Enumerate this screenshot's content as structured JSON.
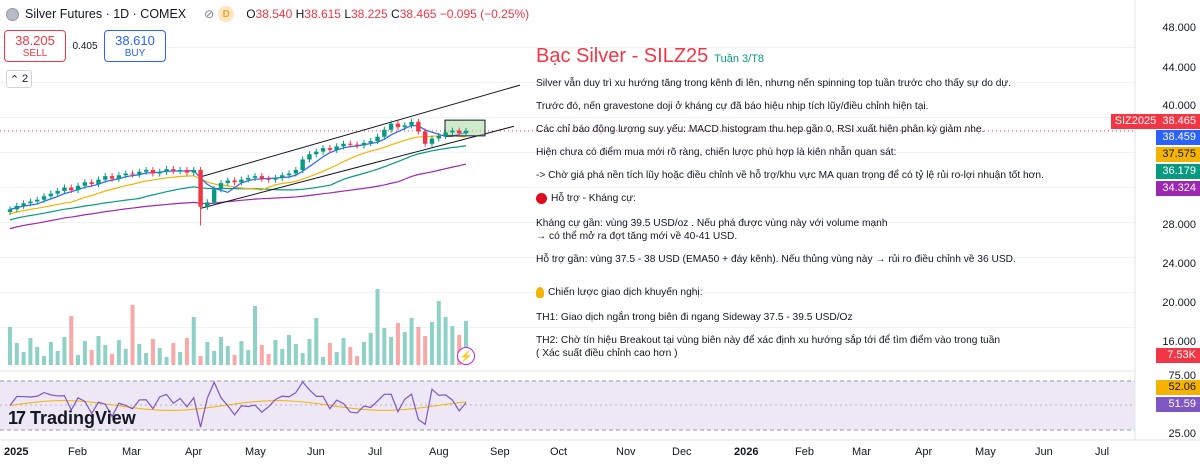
{
  "header": {
    "title": "Silver Futures · 1D · COMEX",
    "d_badge": "D",
    "eye_icon": "eye-off-icon",
    "ohlc": {
      "o_label": "O",
      "o": "38.540",
      "h_label": "H",
      "h": "38.615",
      "l_label": "L",
      "l": "38.225",
      "c_label": "C",
      "c": "38.465",
      "change": "−0.095 (−0.25%)"
    }
  },
  "trade": {
    "sell_price": "38.205",
    "sell_label": "SELL",
    "spread": "0.405",
    "buy_price": "38.610",
    "buy_label": "BUY"
  },
  "collapse": {
    "count": "2"
  },
  "brand": {
    "name": "TradingView"
  },
  "annotation": {
    "title": "Bạc Silver - SILZ25",
    "subtitle": "Tuần 3/T8",
    "lines": [
      "Silver vẫn duy trì xu hướng tăng trong kênh đi lên, nhưng nến spinning top tuần trước cho thấy sự do dự.",
      "Trước đó, nến gravestone doji ở kháng cự đã báo hiệu nhịp tích lũy/điều chỉnh hiện tại.",
      "Các chỉ báo động lượng suy yếu: MACD histogram thu hẹp gần 0, RSI xuất hiện phân kỳ giảm nhẹ.",
      "Hiện chưa có điểm mua mới rõ ràng, chiến lược phù hợp là kiên nhẫn quan sát:",
      "-> Chờ giá phá nền tích lũy hoặc điều chỉnh về hỗ trợ/khu vực MA quan trọng để có tỷ lệ rủi ro-lợi nhuận tốt hơn."
    ],
    "support_title": "Hỗ trợ - Kháng cự:",
    "resistance_line1": "Kháng cự gần: vùng 39.5 USD/oz . Nếu phá được vùng này với volume mạnh",
    "resistance_line2": "→ có thể mở ra đợt tăng mới về 40-41 USD.",
    "support_line": "Hỗ trợ gần: vùng 37.5 - 38 USD (EMA50 + đáy kênh). Nếu thủng vùng này → rủi ro điều chỉnh về 36 USD.",
    "strategy_title": "Chiến lược giao dịch khuyến nghị:",
    "th1": "TH1: Giao dịch ngắn trong biên đi ngang Sideway 37.5 - 39.5 USD/Oz",
    "th2_line1": "TH2: Chờ tín hiệu Breakout tại vùng biên này để xác định xu hướng sắp tới để tìm điểm vào trong tuần",
    "th2_line2": "( Xác suất điều chỉnh cao hơn )"
  },
  "price_axis": {
    "ticks": [
      "48.000",
      "44.000",
      "40.000",
      "28.000",
      "24.000",
      "20.000",
      "16.000"
    ],
    "badges": [
      {
        "label": "SIZ2025",
        "value": "38.465",
        "color": "#f23645"
      },
      {
        "value": "38.459",
        "color": "#2962ff"
      },
      {
        "value": "37.575",
        "color": "#f5b301"
      },
      {
        "value": "36.179",
        "color": "#089981"
      },
      {
        "value": "34.324",
        "color": "#9c27b0"
      },
      {
        "value": "7.53K",
        "color": "#f23645"
      }
    ]
  },
  "rsi_axis": {
    "ticks": [
      "75.00",
      "25.00"
    ],
    "badges": [
      {
        "value": "52.06",
        "color": "#f5b301"
      },
      {
        "value": "51.59",
        "color": "#7e57c2"
      }
    ]
  },
  "time_axis": [
    {
      "label": "2025",
      "bold": true
    },
    {
      "label": "Feb"
    },
    {
      "label": "Mar"
    },
    {
      "label": "Apr"
    },
    {
      "label": "May"
    },
    {
      "label": "Jun"
    },
    {
      "label": "Jul"
    },
    {
      "label": "Aug"
    },
    {
      "label": "Sep"
    },
    {
      "label": "Oct"
    },
    {
      "label": "Nov"
    },
    {
      "label": "Dec"
    },
    {
      "label": "2026",
      "bold": true
    },
    {
      "label": "Feb"
    },
    {
      "label": "Mar"
    },
    {
      "label": "Apr"
    },
    {
      "label": "May"
    },
    {
      "label": "Jun"
    },
    {
      "label": "Jul"
    }
  ],
  "chart_data": {
    "type": "line",
    "title": "Silver Futures · 1D · COMEX",
    "ylabel": "",
    "xlabel": "",
    "ylim": [
      14,
      50
    ],
    "series": [
      {
        "name": "",
        "values": [
          29.5,
          29.9,
          30.2,
          30.4,
          30.6,
          31.0,
          31.3,
          31.6,
          32.0,
          31.7,
          32.2,
          32.6,
          32.4,
          32.9,
          33.3,
          33.0,
          33.4,
          33.6,
          33.5,
          33.8,
          34.0,
          33.6,
          33.8,
          34.1,
          33.9,
          34.0,
          33.7,
          34.0,
          29.8,
          30.3,
          31.8,
          32.5,
          32.8,
          32.6,
          32.9,
          33.1,
          33.3,
          33.0,
          32.9,
          33.1,
          33.4,
          33.6,
          34.0,
          35.2,
          35.8,
          36.1,
          36.5,
          36.3,
          36.7,
          37.0,
          36.9,
          36.8,
          37.1,
          37.3,
          37.8,
          38.6,
          39.3,
          38.9,
          39.1,
          39.5,
          38.4,
          37.0,
          37.6,
          37.9,
          38.3,
          38.5,
          38.2,
          38.47
        ]
      }
    ],
    "annotation_levels": {
      "resistance": 39.5,
      "support_low": 37.5,
      "support_high": 38.0
    }
  }
}
